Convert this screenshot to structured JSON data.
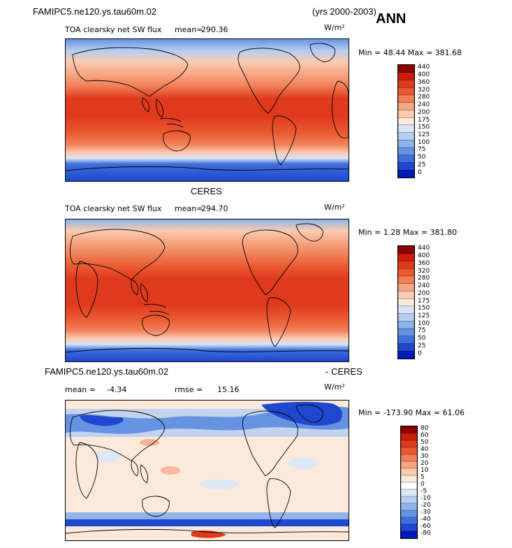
{
  "header": {
    "case_name": "FAMIPC5.ne120.ys.tau60m.02",
    "years": "(yrs 2000-2003)",
    "season": "ANN"
  },
  "panels": [
    {
      "title": "",
      "variable": "TOA clearsky net SW flux",
      "mean_label": "mean=",
      "mean_value": "290.36",
      "units": "W/m²",
      "minmax": "Min =   48.44 Max = 381.68",
      "levels": [
        "440",
        "400",
        "360",
        "320",
        "280",
        "240",
        "200",
        "175",
        "150",
        "125",
        "100",
        "75",
        "50",
        "25",
        "0"
      ],
      "colors": [
        "#8b0000",
        "#c81e0a",
        "#df3a1e",
        "#ea5a32",
        "#f07f57",
        "#f6a582",
        "#fbcbb0",
        "#fbe9dc",
        "#d6e4f6",
        "#b4cdf0",
        "#8eb3ea",
        "#6692e2",
        "#3f6fdb",
        "#1f47cf",
        "#001ab8"
      ]
    },
    {
      "title": "CERES",
      "variable": "TOA clearsky net SW flux",
      "mean_label": "mean=",
      "mean_value": "294.70",
      "units": "W/m²",
      "minmax": "Min =    1.28 Max = 381.80",
      "levels": [
        "440",
        "400",
        "360",
        "320",
        "280",
        "240",
        "200",
        "175",
        "150",
        "125",
        "100",
        "75",
        "50",
        "25",
        "0"
      ],
      "colors": [
        "#8b0000",
        "#c81e0a",
        "#df3a1e",
        "#ea5a32",
        "#f07f57",
        "#f6a582",
        "#fbcbb0",
        "#fbe9dc",
        "#d6e4f6",
        "#b4cdf0",
        "#8eb3ea",
        "#6692e2",
        "#3f6fdb",
        "#1f47cf",
        "#001ab8"
      ]
    },
    {
      "title_left": "FAMIPC5.ne120.ys.tau60m.02",
      "title_right": "- CERES",
      "mean_label": "mean =",
      "mean_value": "-4.34",
      "rmse_label": "rmse =",
      "rmse_value": "15.16",
      "units": "W/m²",
      "minmax": "Min = -173.90 Max =  61.06",
      "levels": [
        "80",
        "60",
        "50",
        "40",
        "30",
        "20",
        "10",
        "5",
        "0",
        "-5",
        "-10",
        "-20",
        "-30",
        "-40",
        "-60",
        "-80"
      ],
      "colors": [
        "#8b0000",
        "#c81e0a",
        "#df3a1e",
        "#ea5a32",
        "#f07f57",
        "#f6a582",
        "#fbcbb0",
        "#fbe9dc",
        "#ffffff",
        "#dde8f7",
        "#b8cff0",
        "#90b4ea",
        "#6692e2",
        "#3f6fdb",
        "#1f47cf",
        "#001ab8"
      ]
    }
  ]
}
